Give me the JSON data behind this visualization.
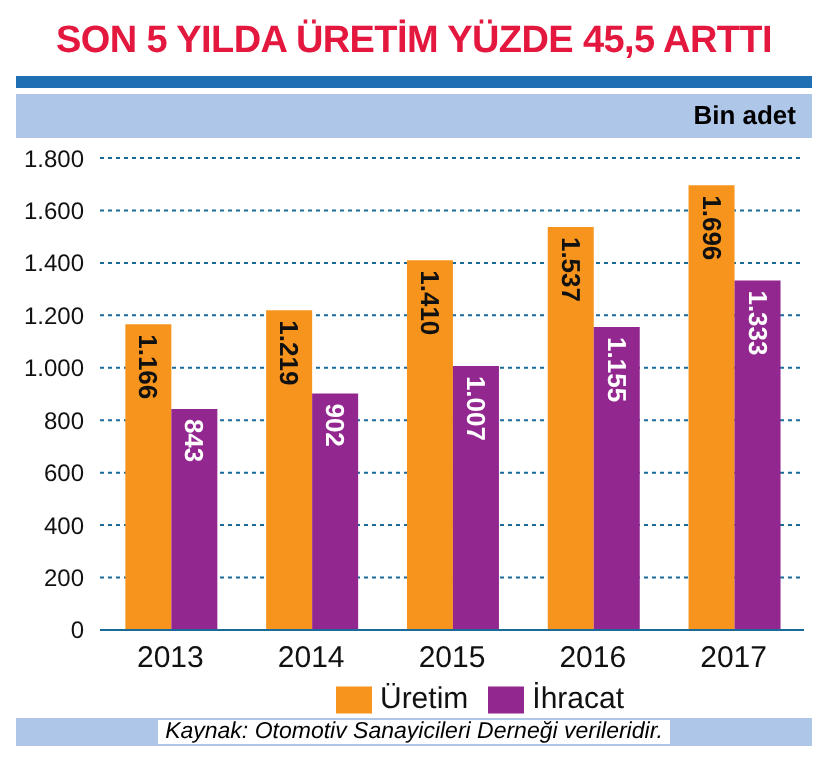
{
  "chart_data": {
    "type": "bar",
    "title": "SON 5 YILDA ÜRETİM YÜZDE 45,5 ARTTI",
    "ylabel": "Bin adet",
    "annotations": [
      "Kaynak: Otomotiv Sanayicileri Derneği verileridir."
    ],
    "categories": [
      "2013",
      "2014",
      "2015",
      "2016",
      "2017"
    ],
    "series": [
      {
        "name": "Üretim",
        "color": "#f7941d",
        "values": [
          1166,
          1219,
          1410,
          1537,
          1696
        ],
        "value_labels": [
          "1.166",
          "1.219",
          "1.410",
          "1.537",
          "1.696"
        ]
      },
      {
        "name": "İhracat",
        "color": "#92278f",
        "values": [
          843,
          902,
          1007,
          1155,
          1333
        ],
        "value_labels": [
          "843",
          "902",
          "1.007",
          "1.155",
          "1.333"
        ]
      }
    ],
    "ylim": [
      0,
      1800
    ],
    "yticks": [
      0,
      200,
      400,
      600,
      800,
      {
        "value": 1000,
        "label": "1.000"
      },
      {
        "value": 1200,
        "label": "1.200"
      },
      {
        "value": 1400,
        "label": "1.400"
      },
      {
        "value": 1600,
        "label": "1.600"
      },
      {
        "value": 1800,
        "label": "1.800"
      }
    ],
    "grid": "y",
    "legend": "bottom"
  }
}
